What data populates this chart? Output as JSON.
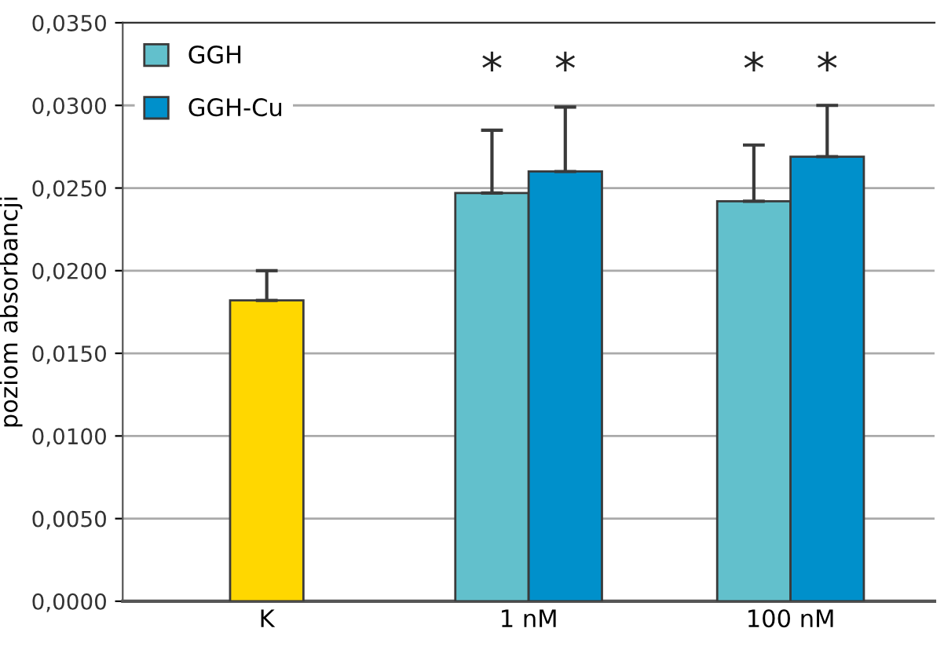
{
  "chart_data": {
    "type": "bar",
    "ylabel": "poziom absorbancji",
    "categories": [
      "K",
      "1 nM",
      "100 nM"
    ],
    "series": [
      {
        "color": "#ffd700",
        "values": [
          0.0182,
          null,
          null
        ],
        "errors": [
          [
            0.0182,
            0.02
          ],
          null,
          null
        ]
      },
      {
        "name": "GGH",
        "color": "#62c0cc",
        "values": [
          null,
          0.0247,
          0.0242
        ],
        "errors": [
          null,
          [
            0.0247,
            0.0285
          ],
          [
            0.0242,
            0.0276
          ]
        ]
      },
      {
        "name": "GGH-Cu",
        "color": "#0090cb",
        "values": [
          null,
          0.026,
          0.0269
        ],
        "errors": [
          null,
          [
            0.026,
            0.0299
          ],
          [
            0.0269,
            0.03
          ]
        ]
      }
    ],
    "ylim": [
      0,
      0.035
    ],
    "yticks": [
      {
        "value": 0,
        "label": "0,0000"
      },
      {
        "value": 0.005,
        "label": "0,0050"
      },
      {
        "value": 0.01,
        "label": "0,0100"
      },
      {
        "value": 0.015,
        "label": "0,0150"
      },
      {
        "value": 0.02,
        "label": "0,0200"
      },
      {
        "value": 0.025,
        "label": "0,0250"
      },
      {
        "value": 0.03,
        "label": "0,0300"
      },
      {
        "value": 0.035,
        "label": "0,0350"
      }
    ],
    "grid": "y",
    "legend": "top left",
    "annotations": [
      "*",
      "*",
      "*",
      "*"
    ]
  }
}
